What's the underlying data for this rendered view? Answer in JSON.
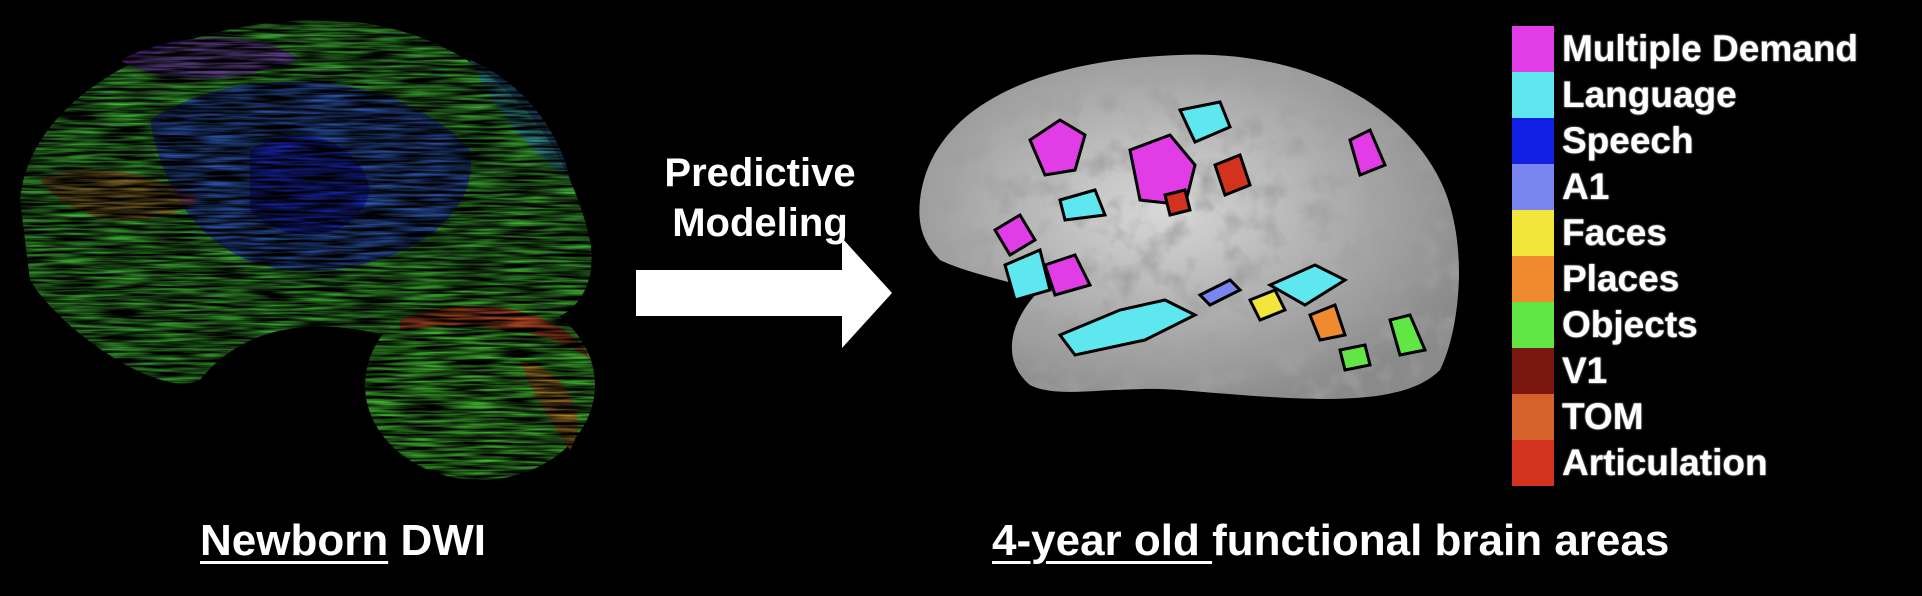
{
  "arrow": {
    "line1": "Predictive",
    "line2": "Modeling"
  },
  "legend": [
    {
      "label": "Multiple Demand",
      "color": "#e13ce6"
    },
    {
      "label": "Language",
      "color": "#5fe7f0"
    },
    {
      "label": "Speech",
      "color": "#1220e6"
    },
    {
      "label": "A1",
      "color": "#7a86f0"
    },
    {
      "label": "Faces",
      "color": "#f2e63c"
    },
    {
      "label": "Places",
      "color": "#ef8a2e"
    },
    {
      "label": "Objects",
      "color": "#62e646"
    },
    {
      "label": "V1",
      "color": "#7a180f"
    },
    {
      "label": "TOM",
      "color": "#d4622a"
    },
    {
      "label": "Articulation",
      "color": "#d2321e"
    }
  ],
  "captions": {
    "left_underlined": "Newborn",
    "left_rest": " DWI",
    "right_underlined": "4-year old ",
    "right_rest": "functional brain areas"
  }
}
